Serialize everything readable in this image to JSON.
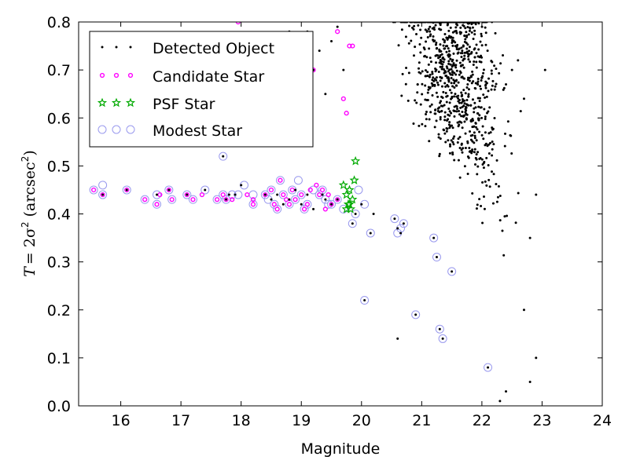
{
  "chart_data": {
    "type": "scatter",
    "title": "",
    "xlabel": "Magnitude",
    "ylabel_italic": "T",
    "ylabel_math": "= 2σ",
    "ylabel_sup": "2",
    "ylabel_unit": "(arcsec",
    "ylabel_unit_sup": "2",
    "ylabel_unit_close": ")",
    "xlim": [
      15.3,
      24
    ],
    "ylim": [
      0.0,
      0.8
    ],
    "xticks": [
      16,
      17,
      18,
      19,
      20,
      21,
      22,
      23,
      24
    ],
    "yticks": [
      0.0,
      0.1,
      0.2,
      0.3,
      0.4,
      0.5,
      0.6,
      0.7,
      0.8
    ],
    "xtick_labels": [
      "16",
      "17",
      "18",
      "19",
      "20",
      "21",
      "22",
      "23",
      "24"
    ],
    "ytick_labels": [
      "0.0",
      "0.1",
      "0.2",
      "0.3",
      "0.4",
      "0.5",
      "0.6",
      "0.7",
      "0.8"
    ],
    "grid": false,
    "legend_position": "top-left",
    "series": [
      {
        "name": "Detected Object",
        "marker": "dot",
        "color": "#000000",
        "points": [
          [
            15.7,
            0.44
          ],
          [
            16.1,
            0.45
          ],
          [
            16.6,
            0.44
          ],
          [
            16.8,
            0.45
          ],
          [
            17.1,
            0.44
          ],
          [
            17.4,
            0.45
          ],
          [
            17.7,
            0.52
          ],
          [
            17.75,
            0.43
          ],
          [
            17.8,
            0.44
          ],
          [
            17.9,
            0.44
          ],
          [
            18.0,
            0.46
          ],
          [
            18.4,
            0.44
          ],
          [
            18.5,
            0.43
          ],
          [
            18.6,
            0.44
          ],
          [
            18.7,
            0.42
          ],
          [
            18.8,
            0.43
          ],
          [
            18.9,
            0.45
          ],
          [
            19.0,
            0.42
          ],
          [
            19.1,
            0.44
          ],
          [
            19.2,
            0.41
          ],
          [
            19.35,
            0.44
          ],
          [
            19.4,
            0.43
          ],
          [
            19.5,
            0.42
          ],
          [
            19.6,
            0.43
          ],
          [
            19.85,
            0.38
          ],
          [
            19.9,
            0.4
          ],
          [
            20.0,
            0.42
          ],
          [
            20.05,
            0.22
          ],
          [
            20.15,
            0.36
          ],
          [
            20.2,
            0.4
          ],
          [
            20.55,
            0.39
          ],
          [
            20.6,
            0.37
          ],
          [
            20.65,
            0.36
          ],
          [
            20.7,
            0.38
          ],
          [
            20.9,
            0.19
          ],
          [
            21.2,
            0.35
          ],
          [
            21.25,
            0.31
          ],
          [
            21.3,
            0.16
          ],
          [
            21.35,
            0.14
          ],
          [
            21.5,
            0.28
          ],
          [
            22.1,
            0.08
          ],
          [
            20.6,
            0.14
          ],
          [
            19.6,
            0.79
          ],
          [
            19.7,
            0.7
          ],
          [
            19.2,
            0.7
          ],
          [
            19.5,
            0.76
          ],
          [
            19.3,
            0.74
          ],
          [
            19.4,
            0.65
          ],
          [
            19.1,
            0.78
          ],
          [
            18.8,
            0.78
          ],
          [
            22.6,
            0.72
          ],
          [
            22.7,
            0.64
          ],
          [
            23.05,
            0.7
          ],
          [
            22.5,
            0.7
          ],
          [
            22.4,
            0.67
          ],
          [
            22.9,
            0.44
          ],
          [
            22.8,
            0.35
          ],
          [
            22.7,
            0.2
          ],
          [
            22.9,
            0.1
          ],
          [
            22.8,
            0.05
          ],
          [
            22.4,
            0.03
          ],
          [
            22.3,
            0.01
          ]
        ]
      },
      {
        "name": "Candidate Star",
        "marker": "circle-small",
        "color": "#ff00ff",
        "points": [
          [
            15.55,
            0.45
          ],
          [
            15.7,
            0.44
          ],
          [
            16.1,
            0.45
          ],
          [
            16.4,
            0.43
          ],
          [
            16.6,
            0.42
          ],
          [
            16.65,
            0.44
          ],
          [
            16.8,
            0.45
          ],
          [
            16.85,
            0.43
          ],
          [
            17.1,
            0.44
          ],
          [
            17.2,
            0.43
          ],
          [
            17.35,
            0.44
          ],
          [
            17.6,
            0.43
          ],
          [
            17.7,
            0.44
          ],
          [
            17.75,
            0.43
          ],
          [
            17.85,
            0.43
          ],
          [
            17.95,
            0.8
          ],
          [
            18.1,
            0.44
          ],
          [
            18.2,
            0.43
          ],
          [
            18.2,
            0.42
          ],
          [
            18.4,
            0.44
          ],
          [
            18.5,
            0.45
          ],
          [
            18.55,
            0.42
          ],
          [
            18.6,
            0.41
          ],
          [
            18.65,
            0.47
          ],
          [
            18.7,
            0.44
          ],
          [
            18.75,
            0.43
          ],
          [
            18.8,
            0.42
          ],
          [
            18.85,
            0.45
          ],
          [
            18.9,
            0.43
          ],
          [
            19.0,
            0.44
          ],
          [
            19.05,
            0.41
          ],
          [
            19.1,
            0.42
          ],
          [
            19.15,
            0.45
          ],
          [
            19.25,
            0.46
          ],
          [
            19.3,
            0.44
          ],
          [
            19.35,
            0.45
          ],
          [
            19.4,
            0.41
          ],
          [
            19.45,
            0.44
          ],
          [
            19.5,
            0.42
          ],
          [
            19.6,
            0.43
          ],
          [
            19.2,
            0.7
          ],
          [
            19.6,
            0.78
          ],
          [
            19.7,
            0.64
          ],
          [
            19.75,
            0.61
          ],
          [
            19.8,
            0.75
          ],
          [
            19.85,
            0.75
          ]
        ]
      },
      {
        "name": "PSF Star",
        "marker": "star",
        "color": "#00aa00",
        "points": [
          [
            19.7,
            0.46
          ],
          [
            19.75,
            0.44
          ],
          [
            19.78,
            0.42
          ],
          [
            19.8,
            0.45
          ],
          [
            19.82,
            0.41
          ],
          [
            19.85,
            0.43
          ],
          [
            19.88,
            0.47
          ],
          [
            19.9,
            0.51
          ],
          [
            19.75,
            0.41
          ],
          [
            19.8,
            0.42
          ]
        ]
      },
      {
        "name": "Modest Star",
        "marker": "circle-large",
        "color": "#9999ee",
        "points": [
          [
            15.55,
            0.45
          ],
          [
            15.7,
            0.44
          ],
          [
            15.7,
            0.46
          ],
          [
            16.1,
            0.45
          ],
          [
            16.4,
            0.43
          ],
          [
            16.6,
            0.44
          ],
          [
            16.6,
            0.42
          ],
          [
            16.8,
            0.45
          ],
          [
            16.85,
            0.43
          ],
          [
            17.1,
            0.44
          ],
          [
            17.2,
            0.43
          ],
          [
            17.4,
            0.45
          ],
          [
            17.6,
            0.43
          ],
          [
            17.7,
            0.52
          ],
          [
            17.7,
            0.44
          ],
          [
            17.75,
            0.43
          ],
          [
            17.85,
            0.44
          ],
          [
            17.95,
            0.44
          ],
          [
            18.05,
            0.46
          ],
          [
            18.2,
            0.44
          ],
          [
            18.2,
            0.42
          ],
          [
            18.4,
            0.44
          ],
          [
            18.45,
            0.43
          ],
          [
            18.5,
            0.45
          ],
          [
            18.55,
            0.42
          ],
          [
            18.6,
            0.41
          ],
          [
            18.65,
            0.47
          ],
          [
            18.7,
            0.44
          ],
          [
            18.8,
            0.42
          ],
          [
            18.85,
            0.45
          ],
          [
            18.9,
            0.43
          ],
          [
            18.95,
            0.47
          ],
          [
            19.0,
            0.44
          ],
          [
            19.05,
            0.41
          ],
          [
            19.1,
            0.42
          ],
          [
            19.2,
            0.45
          ],
          [
            19.3,
            0.44
          ],
          [
            19.35,
            0.45
          ],
          [
            19.4,
            0.43
          ],
          [
            19.45,
            0.42
          ],
          [
            19.5,
            0.42
          ],
          [
            19.6,
            0.43
          ],
          [
            19.7,
            0.41
          ],
          [
            19.85,
            0.38
          ],
          [
            19.9,
            0.4
          ],
          [
            19.95,
            0.45
          ],
          [
            20.05,
            0.42
          ],
          [
            20.05,
            0.22
          ],
          [
            20.15,
            0.36
          ],
          [
            20.55,
            0.39
          ],
          [
            20.6,
            0.36
          ],
          [
            20.65,
            0.37
          ],
          [
            20.7,
            0.38
          ],
          [
            20.9,
            0.19
          ],
          [
            21.2,
            0.35
          ],
          [
            21.25,
            0.31
          ],
          [
            21.3,
            0.16
          ],
          [
            21.35,
            0.14
          ],
          [
            21.5,
            0.28
          ],
          [
            22.1,
            0.08
          ]
        ]
      }
    ]
  }
}
